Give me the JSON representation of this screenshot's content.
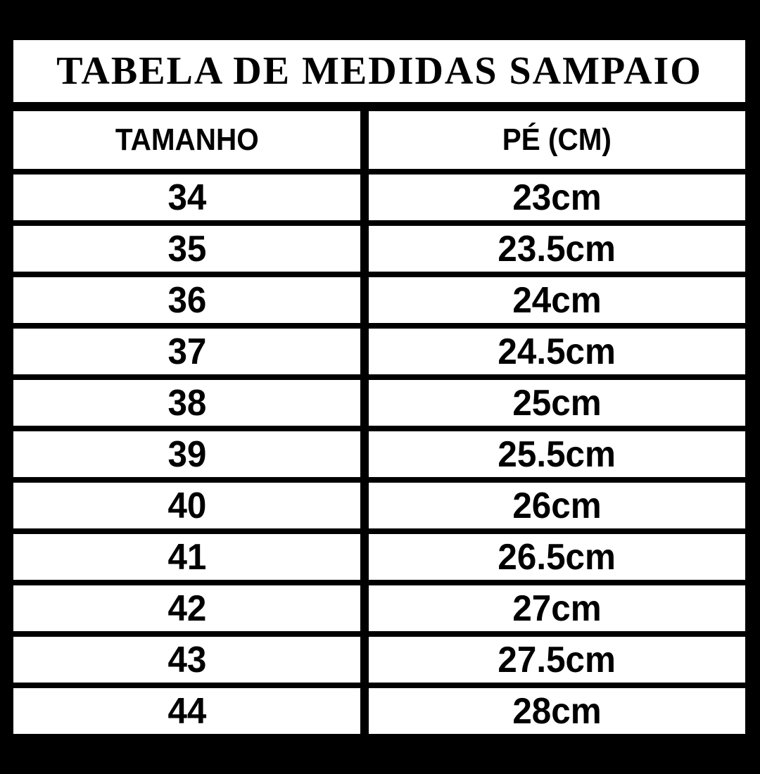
{
  "title": "TABELA DE MEDIDAS SAMPAIO",
  "chart_data": {
    "type": "table",
    "title": "TABELA DE MEDIDAS SAMPAIO",
    "columns": [
      "TAMANHO",
      "PÉ (CM)"
    ],
    "rows": [
      {
        "tamanho": "34",
        "pe_cm": "23cm"
      },
      {
        "tamanho": "35",
        "pe_cm": "23.5cm"
      },
      {
        "tamanho": "36",
        "pe_cm": "24cm"
      },
      {
        "tamanho": "37",
        "pe_cm": "24.5cm"
      },
      {
        "tamanho": "38",
        "pe_cm": "25cm"
      },
      {
        "tamanho": "39",
        "pe_cm": "25.5cm"
      },
      {
        "tamanho": "40",
        "pe_cm": "26cm"
      },
      {
        "tamanho": "41",
        "pe_cm": "26.5cm"
      },
      {
        "tamanho": "42",
        "pe_cm": "27cm"
      },
      {
        "tamanho": "43",
        "pe_cm": "27.5cm"
      },
      {
        "tamanho": "44",
        "pe_cm": "28cm"
      }
    ],
    "layout": {
      "background_color": "#000000",
      "cell_background_color": "#ffffff",
      "text_color": "#000000",
      "grid": "on"
    }
  }
}
